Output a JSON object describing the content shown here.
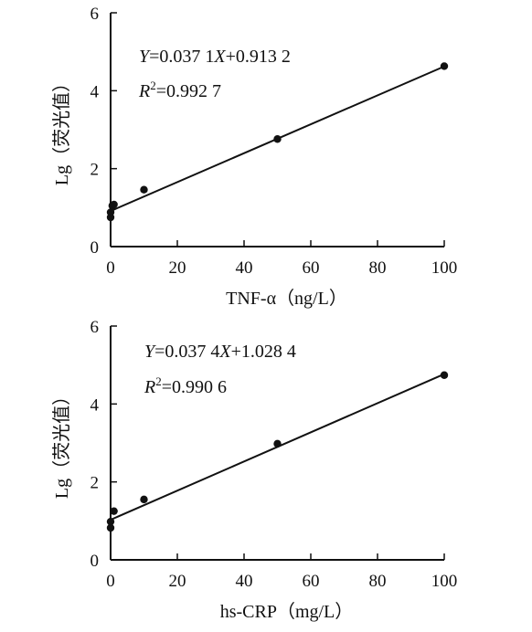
{
  "chart_data": [
    {
      "type": "scatter",
      "title": "",
      "xlabel": "TNF-α（ng/L）",
      "ylabel": "Lg（荧光值）",
      "xlim": [
        0,
        100
      ],
      "ylim": [
        0,
        6
      ],
      "xticks": [
        0,
        20,
        40,
        60,
        80,
        100
      ],
      "yticks": [
        0,
        2,
        4,
        6
      ],
      "grid": false,
      "points": {
        "x": [
          0,
          0,
          0.5,
          1,
          10,
          50,
          100
        ],
        "y": [
          0.75,
          0.88,
          1.05,
          1.08,
          1.46,
          2.76,
          4.63
        ]
      },
      "fit": {
        "slope": 0.0371,
        "intercept": 0.9132
      },
      "equation": {
        "prefix": "Y",
        "body": "=0.037 1",
        "var": "X",
        "rest": "+0.913 2"
      },
      "r2": {
        "symbol": "R",
        "power": "2",
        "value": "=0.992 7"
      }
    },
    {
      "type": "scatter",
      "title": "",
      "xlabel": "hs-CRP（mg/L）",
      "ylabel": "Lg（荧光值）",
      "xlim": [
        0,
        100
      ],
      "ylim": [
        0,
        6
      ],
      "xticks": [
        0,
        20,
        40,
        60,
        80,
        100
      ],
      "yticks": [
        0,
        2,
        4,
        6
      ],
      "grid": false,
      "points": {
        "x": [
          0,
          0,
          1,
          10,
          50,
          100
        ],
        "y": [
          0.82,
          0.98,
          1.25,
          1.55,
          2.98,
          4.74
        ]
      },
      "fit": {
        "slope": 0.0374,
        "intercept": 1.0284
      },
      "equation": {
        "prefix": "Y",
        "body": "=0.037 4",
        "var": "X",
        "rest": "+1.028 4"
      },
      "r2": {
        "symbol": "R",
        "power": "2",
        "value": "=0.990 6"
      }
    }
  ]
}
